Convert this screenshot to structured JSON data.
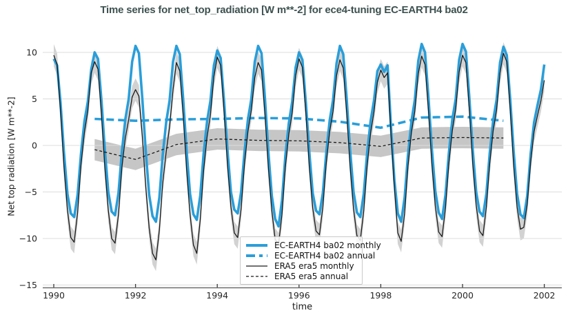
{
  "title": "Time series for net_top_radiation [W m**-2] for ece4-tuning EC-EARTH4 ba02",
  "axes": {
    "x_label": "time",
    "y_label": "Net top radiation [W m**-2]"
  },
  "legend": {
    "items": [
      {
        "label": "EC-EARTH4 ba02 monthly",
        "line": "blue-solid-thick"
      },
      {
        "label": "EC-EARTH4 ba02 annual",
        "line": "blue-dashed-thick"
      },
      {
        "label": "ERA5 era5 monthly",
        "line": "black-solid-thin"
      },
      {
        "label": "ERA5 era5 annual",
        "line": "black-dashed-thin"
      }
    ]
  },
  "colors": {
    "model_blue": "#2a9ed9",
    "reference_black": "#1a1a1a",
    "band_monthly_gray": "#d2d2d2",
    "band_annual_gray": "#c6c6c6",
    "grid_gray": "#dcdcdc",
    "spine_gray": "#6e6e6e",
    "tick_text": "#262626",
    "title_color": "#3d514f"
  },
  "chart_data": {
    "type": "line",
    "title": "Time series for net_top_radiation [W m**-2] for ece4-tuning EC-EARTH4 ba02",
    "xlabel": "time",
    "ylabel": "Net top radiation [W m**-2]",
    "xlim": [
      1989.73,
      2002.45
    ],
    "ylim": [
      -15.5,
      12.2
    ],
    "xticks": [
      1990,
      1992,
      1994,
      1996,
      1998,
      2000,
      2002
    ],
    "yticks": [
      10,
      5,
      0,
      -5,
      -10,
      -15
    ],
    "ytick_labels": [
      "10",
      "5",
      "0",
      "−5",
      "−10",
      "−15"
    ],
    "grid": "horizontal-only",
    "legend_position": "lower center-left inside axes",
    "series": [
      {
        "name": "EC-EARTH4 ba02 monthly",
        "color_key": "model_blue",
        "style": "solid",
        "width": 3.6,
        "x_start": 1990.0,
        "x_step": 0.0833333,
        "values": [
          9.3,
          8.6,
          4.5,
          -0.8,
          -5.2,
          -7.3,
          -7.7,
          -5.3,
          -0.9,
          2.6,
          4.7,
          8.2,
          10.0,
          9.3,
          4.8,
          -0.5,
          -5.0,
          -7.1,
          -7.5,
          -5.1,
          -0.7,
          2.8,
          5.0,
          9.0,
          10.7,
          9.9,
          5.0,
          -0.6,
          -5.3,
          -7.6,
          -8.2,
          -5.6,
          -1.0,
          2.5,
          4.8,
          9.0,
          10.7,
          9.8,
          4.9,
          -0.6,
          -5.2,
          -7.4,
          -8.0,
          -5.4,
          -0.9,
          2.6,
          4.8,
          8.6,
          10.2,
          9.4,
          4.7,
          -0.5,
          -5.0,
          -6.9,
          -7.3,
          -5.0,
          -0.7,
          2.8,
          5.0,
          9.0,
          10.7,
          9.9,
          5.0,
          -0.7,
          -5.4,
          -7.9,
          -8.7,
          -5.9,
          -1.1,
          2.4,
          4.7,
          8.4,
          10.0,
          9.2,
          4.6,
          -0.6,
          -5.1,
          -7.0,
          -7.4,
          -5.1,
          -0.8,
          2.7,
          4.9,
          8.8,
          10.7,
          9.8,
          4.9,
          -0.5,
          -5.0,
          -7.2,
          -7.7,
          -5.2,
          -0.8,
          2.6,
          4.8,
          8.0,
          8.7,
          7.9,
          8.6,
          2.0,
          -3.8,
          -7.3,
          -8.2,
          -5.6,
          -1.0,
          2.6,
          4.9,
          9.1,
          10.9,
          10.0,
          5.1,
          -0.4,
          -4.9,
          -7.2,
          -7.9,
          -5.3,
          -0.8,
          2.8,
          5.0,
          9.2,
          10.9,
          10.1,
          5.1,
          -0.5,
          -5.0,
          -7.1,
          -7.6,
          -5.2,
          -0.8,
          2.7,
          4.9,
          8.9,
          10.6,
          9.7,
          4.9,
          -0.6,
          -5.2,
          -7.4,
          -7.8,
          -5.4,
          -0.9,
          2.5,
          4.3,
          6.0,
          8.7
        ]
      },
      {
        "name": "EC-EARTH4 ba02 annual",
        "color_key": "model_blue",
        "style": "dashed",
        "width": 3.6,
        "x": [
          1991,
          1992,
          1993,
          1994,
          1995,
          1996,
          1997,
          1998,
          1999,
          2000,
          2001
        ],
        "values": [
          2.85,
          2.65,
          2.8,
          2.85,
          2.95,
          2.9,
          2.55,
          1.9,
          3.0,
          3.1,
          2.65
        ]
      },
      {
        "name": "ERA5 era5 monthly",
        "color_key": "reference_black",
        "style": "solid",
        "width": 1.3,
        "band_halfwidth": 1.2,
        "x_start": 1990.0,
        "x_step": 0.0833333,
        "values": [
          9.7,
          8.7,
          3.6,
          -2.3,
          -6.9,
          -9.9,
          -10.4,
          -7.2,
          -2.1,
          1.4,
          3.7,
          7.8,
          9.0,
          8.2,
          3.3,
          -2.4,
          -7.0,
          -10.0,
          -10.5,
          -7.4,
          -2.4,
          0.8,
          2.8,
          5.2,
          6.0,
          5.3,
          1.0,
          -4.4,
          -8.9,
          -11.6,
          -12.3,
          -9.1,
          -4.0,
          -0.7,
          2.0,
          6.0,
          8.9,
          8.0,
          3.2,
          -2.6,
          -7.4,
          -10.7,
          -11.6,
          -8.0,
          -2.7,
          0.9,
          3.3,
          7.4,
          9.5,
          8.6,
          3.6,
          -2.1,
          -6.6,
          -9.4,
          -9.9,
          -6.8,
          -2.0,
          1.5,
          3.8,
          7.3,
          8.9,
          8.1,
          3.3,
          -2.4,
          -7.0,
          -10.1,
          -10.6,
          -7.4,
          -2.3,
          1.2,
          3.5,
          7.5,
          9.3,
          8.4,
          3.5,
          -2.2,
          -6.7,
          -9.2,
          -9.6,
          -6.6,
          -1.9,
          1.5,
          3.7,
          7.5,
          9.2,
          8.3,
          3.4,
          -2.3,
          -6.8,
          -9.7,
          -10.2,
          -7.0,
          -2.2,
          1.3,
          3.6,
          6.8,
          8.1,
          7.3,
          7.8,
          1.2,
          -4.6,
          -9.4,
          -10.3,
          -7.3,
          -2.2,
          1.4,
          3.7,
          7.7,
          9.6,
          8.7,
          3.7,
          -2.0,
          -6.5,
          -9.3,
          -9.8,
          -6.7,
          -1.9,
          1.6,
          3.9,
          7.9,
          9.7,
          8.9,
          3.8,
          -2.0,
          -6.4,
          -9.2,
          -9.7,
          -6.6,
          -1.9,
          1.6,
          3.8,
          7.8,
          9.9,
          9.0,
          3.8,
          -2.1,
          -6.6,
          -9.0,
          -8.8,
          -6.3,
          -1.8,
          1.5,
          3.2,
          4.8,
          7.0
        ]
      },
      {
        "name": "ERA5 era5 annual",
        "color_key": "reference_black",
        "style": "dashed",
        "width": 1.3,
        "band_halfwidth": 1.15,
        "x": [
          1991,
          1992,
          1993,
          1994,
          1995,
          1996,
          1997,
          1998,
          1999,
          2000,
          2001
        ],
        "values": [
          -0.45,
          -1.5,
          0.1,
          0.7,
          0.55,
          0.5,
          0.3,
          -0.1,
          0.8,
          0.85,
          0.8
        ]
      }
    ]
  }
}
